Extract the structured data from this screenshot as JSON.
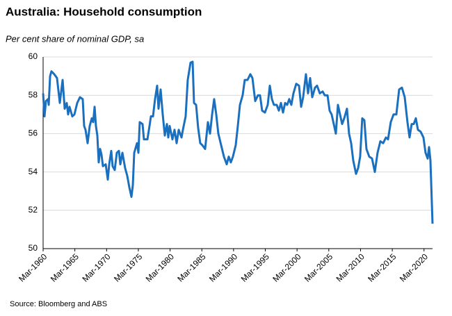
{
  "chart_data": {
    "type": "line",
    "title": "Australia: Household consumption",
    "subtitle": "Per cent share of nominal GDP, sa",
    "source": "Source: Bloomberg and ABS",
    "xlim": [
      1960,
      2021.34
    ],
    "xticks": [
      {
        "value": 1960,
        "label": "Mar-1960"
      },
      {
        "value": 1965,
        "label": "Mar-1965"
      },
      {
        "value": 1970,
        "label": "Mar-1970"
      },
      {
        "value": 1975,
        "label": "Mar-1975"
      },
      {
        "value": 1980,
        "label": "Mar-1980"
      },
      {
        "value": 1985,
        "label": "Mar-1985"
      },
      {
        "value": 1990,
        "label": "Mar-1990"
      },
      {
        "value": 1995,
        "label": "Mar-1995"
      },
      {
        "value": 2000,
        "label": "Mar-2000"
      },
      {
        "value": 2005,
        "label": "Mar-2005"
      },
      {
        "value": 2010,
        "label": "Mar-2010"
      },
      {
        "value": 2015,
        "label": "Mar-2015"
      },
      {
        "value": 2020,
        "label": "Mar-2020"
      }
    ],
    "ylim": [
      50,
      60
    ],
    "yticks": [
      50,
      52,
      54,
      56,
      58,
      60
    ],
    "grid": true,
    "x": [
      1960.0,
      1960.22,
      1960.44,
      1960.77,
      1960.88,
      1961.1,
      1961.31,
      1961.75,
      1962.19,
      1962.63,
      1963.07,
      1963.4,
      1963.72,
      1963.94,
      1964.16,
      1964.6,
      1964.93,
      1965.37,
      1965.81,
      1966.24,
      1966.46,
      1966.68,
      1967.01,
      1967.34,
      1967.67,
      1967.89,
      1968.11,
      1968.32,
      1968.54,
      1968.76,
      1968.98,
      1969.2,
      1969.42,
      1969.86,
      1970.19,
      1970.41,
      1970.73,
      1970.95,
      1971.28,
      1971.61,
      1971.94,
      1972.16,
      1972.49,
      1972.92,
      1973.25,
      1973.58,
      1973.91,
      1974.13,
      1974.35,
      1974.79,
      1975.01,
      1975.22,
      1975.66,
      1975.88,
      1976.43,
      1976.76,
      1976.98,
      1977.31,
      1977.63,
      1977.96,
      1978.18,
      1978.51,
      1978.84,
      1979.17,
      1979.5,
      1979.72,
      1979.93,
      1980.37,
      1980.7,
      1981.03,
      1981.36,
      1981.8,
      1982.02,
      1982.45,
      1982.78,
      1983.22,
      1983.55,
      1983.77,
      1984.1,
      1984.42,
      1984.75,
      1985.08,
      1985.52,
      1985.96,
      1986.29,
      1986.62,
      1986.94,
      1987.27,
      1987.6,
      1988.04,
      1988.48,
      1988.92,
      1989.24,
      1989.57,
      1989.9,
      1990.34,
      1990.67,
      1991.0,
      1991.43,
      1991.76,
      1992.2,
      1992.64,
      1992.97,
      1993.41,
      1993.84,
      1994.17,
      1994.5,
      1994.94,
      1995.38,
      1995.71,
      1996.04,
      1996.36,
      1996.8,
      1997.13,
      1997.46,
      1997.79,
      1998.12,
      1998.44,
      1998.77,
      1999.1,
      1999.43,
      1999.87,
      2000.31,
      2000.64,
      2000.96,
      2001.4,
      2001.73,
      2002.06,
      2002.39,
      2002.83,
      2003.15,
      2003.59,
      2004.03,
      2004.36,
      2004.8,
      2005.13,
      2005.45,
      2005.78,
      2006.11,
      2006.44,
      2006.77,
      2007.1,
      2007.43,
      2007.86,
      2008.19,
      2008.52,
      2008.85,
      2009.29,
      2009.62,
      2009.94,
      2010.27,
      2010.6,
      2010.93,
      2011.37,
      2011.81,
      2012.25,
      2012.68,
      2013.12,
      2013.56,
      2014.0,
      2014.33,
      2014.76,
      2015.2,
      2015.64,
      2016.08,
      2016.52,
      2016.96,
      2017.39,
      2017.72,
      2018.05,
      2018.38,
      2018.71,
      2019.04,
      2019.47,
      2019.91,
      2020.24,
      2020.57,
      2020.79,
      2021.01,
      2021.34
    ],
    "series": [
      {
        "name": "Household consumption",
        "color": "#1b6fbf",
        "values": [
          58.1,
          56.9,
          57.7,
          57.8,
          57.5,
          59.0,
          59.25,
          59.1,
          58.9,
          57.6,
          58.8,
          57.3,
          57.6,
          57.0,
          57.4,
          56.9,
          57.0,
          57.6,
          57.9,
          57.8,
          56.4,
          56.2,
          55.5,
          56.4,
          56.8,
          56.6,
          57.4,
          56.4,
          55.9,
          54.5,
          55.2,
          54.9,
          54.3,
          54.4,
          53.6,
          54.4,
          55.1,
          54.3,
          54.1,
          55.0,
          55.1,
          54.4,
          55.0,
          54.2,
          53.8,
          53.2,
          52.7,
          53.3,
          55.0,
          55.5,
          55.0,
          56.6,
          56.5,
          55.7,
          55.7,
          56.4,
          56.9,
          56.9,
          57.8,
          58.5,
          57.3,
          58.3,
          57.0,
          55.9,
          56.5,
          55.8,
          56.4,
          55.7,
          56.2,
          55.5,
          56.2,
          55.8,
          56.2,
          56.9,
          58.8,
          59.7,
          59.75,
          57.6,
          57.5,
          56.3,
          55.5,
          55.4,
          55.2,
          56.6,
          56.0,
          57.0,
          57.8,
          57.0,
          56.0,
          55.4,
          54.8,
          54.4,
          54.8,
          54.5,
          54.8,
          55.4,
          56.4,
          57.5,
          58.0,
          58.8,
          58.8,
          59.1,
          58.9,
          57.7,
          58.0,
          58.0,
          57.2,
          57.1,
          57.5,
          58.5,
          57.8,
          57.5,
          57.5,
          57.2,
          57.6,
          57.1,
          57.6,
          57.5,
          57.8,
          57.5,
          58.1,
          58.6,
          58.5,
          57.4,
          57.9,
          59.1,
          58.1,
          58.9,
          57.9,
          58.4,
          58.5,
          58.1,
          58.2,
          58.0,
          58.0,
          57.2,
          57.0,
          56.5,
          56.0,
          57.5,
          57.0,
          56.5,
          56.8,
          57.3,
          56.0,
          55.5,
          54.6,
          53.9,
          54.2,
          54.8,
          56.8,
          56.7,
          55.2,
          54.8,
          54.7,
          54.0,
          55.0,
          55.6,
          55.5,
          55.8,
          55.7,
          56.6,
          57.0,
          57.0,
          58.3,
          58.4,
          57.9,
          56.6,
          55.8,
          56.5,
          56.5,
          56.8,
          56.2,
          56.1,
          55.8,
          55.0,
          54.7,
          55.3,
          54.6,
          51.3
        ]
      }
    ]
  }
}
